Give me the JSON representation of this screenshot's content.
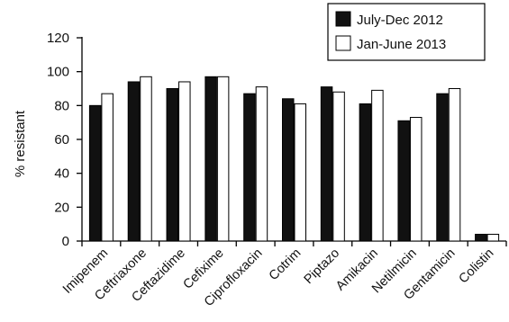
{
  "chart_data": {
    "type": "bar",
    "ylabel": "% resistant",
    "ylim": [
      0,
      120
    ],
    "yticks": [
      0,
      20,
      40,
      60,
      80,
      100,
      120
    ],
    "categories": [
      "Imipenem",
      "Ceftriaxone",
      "Ceftazidime",
      "Cefixime",
      "Ciprofloxacin",
      "Cotrim",
      "Piptazo",
      "Amikacin",
      "Netilmicin",
      "Gentamicin",
      "Colistin"
    ],
    "series": [
      {
        "name": "July-Dec 2012",
        "color": "#111111",
        "values": [
          80,
          94,
          90,
          97,
          87,
          84,
          91,
          81,
          71,
          87,
          4
        ]
      },
      {
        "name": "Jan-June 2013",
        "color": "#ffffff",
        "values": [
          87,
          97,
          94,
          97,
          91,
          81,
          88,
          89,
          73,
          90,
          4
        ]
      }
    ],
    "legend_position": "top-right",
    "grid": false
  }
}
